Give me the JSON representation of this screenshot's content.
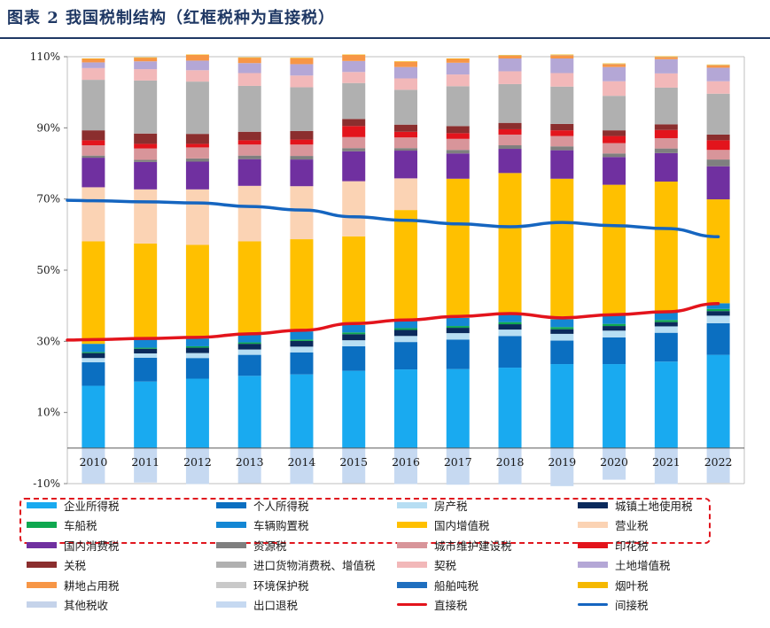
{
  "header": {
    "title": "图表  2    我国税制结构（红框税种为直接税）"
  },
  "chart_data": {
    "type": "stacked-bar-with-lines",
    "title": "我国税制结构（红框税种为直接税）",
    "categories": [
      "2010",
      "2011",
      "2012",
      "2013",
      "2014",
      "2015",
      "2016",
      "2017",
      "2018",
      "2019",
      "2020",
      "2021",
      "2022"
    ],
    "ylim": [
      -10,
      110
    ],
    "yticks": [
      "-10%",
      "10%",
      "30%",
      "50%",
      "70%",
      "90%",
      "110%"
    ],
    "ytick_values": [
      -10,
      10,
      30,
      50,
      70,
      90,
      110
    ],
    "stack_order": [
      "企业所得税",
      "个人所得税",
      "房产税",
      "城镇土地使用税",
      "车船税",
      "车辆购置税",
      "国内增值税",
      "营业税",
      "国内消费税",
      "资源税",
      "城市维护建设税",
      "印花税",
      "关税",
      "进口货物消费税、增值税",
      "契税",
      "土地增值税",
      "耕地占用税",
      "环境保护税",
      "船舶吨税",
      "烟叶税",
      "其他税收"
    ],
    "series": [
      {
        "name": "企业所得税",
        "color": "#19aaf0",
        "values": [
          17.5,
          18.7,
          19.5,
          20.3,
          20.7,
          21.7,
          22.1,
          22.2,
          22.6,
          23.6,
          23.6,
          24.3,
          26.2
        ]
      },
      {
        "name": "个人所得税",
        "color": "#0b6fc1",
        "values": [
          6.6,
          6.7,
          5.8,
          5.9,
          6.2,
          6.9,
          7.7,
          8.3,
          8.9,
          6.6,
          7.5,
          8.1,
          8.9
        ]
      },
      {
        "name": "房产税",
        "color": "#b7def3",
        "values": [
          1.2,
          1.2,
          1.4,
          1.5,
          1.6,
          1.7,
          1.7,
          1.8,
          1.8,
          1.9,
          1.9,
          1.8,
          2.1
        ]
      },
      {
        "name": "城镇土地使用税",
        "color": "#0a2a5c",
        "values": [
          1.4,
          1.3,
          1.5,
          1.6,
          1.6,
          1.7,
          1.7,
          1.5,
          1.5,
          1.3,
          1.3,
          1.2,
          1.3
        ]
      },
      {
        "name": "车船税",
        "color": "#0fa84f",
        "values": [
          0.3,
          0.3,
          0.4,
          0.4,
          0.4,
          0.5,
          0.5,
          0.5,
          0.6,
          0.6,
          0.6,
          0.6,
          0.6
        ]
      },
      {
        "name": "车辆购置税",
        "color": "#1487d4",
        "values": [
          2.3,
          2.3,
          2.2,
          2.3,
          2.3,
          2.1,
          2.0,
          2.3,
          2.3,
          2.2,
          2.3,
          2.2,
          1.6
        ]
      },
      {
        "name": "国内增值税",
        "color": "#ffc000",
        "values": [
          28.8,
          27.0,
          26.3,
          26.1,
          25.9,
          24.9,
          31.2,
          39.1,
          39.6,
          39.5,
          36.8,
          36.7,
          29.2
        ]
      },
      {
        "name": "营业税",
        "color": "#fbd3b4",
        "values": [
          15.2,
          15.2,
          15.6,
          15.6,
          14.9,
          15.5,
          8.9,
          0,
          0,
          0,
          0,
          0,
          0
        ]
      },
      {
        "name": "国内消费税",
        "color": "#7030a0",
        "values": [
          8.3,
          7.7,
          7.8,
          7.5,
          7.5,
          8.4,
          7.8,
          7.1,
          6.8,
          8.0,
          7.8,
          8.0,
          9.3
        ]
      },
      {
        "name": "资源税",
        "color": "#7f7f7f",
        "values": [
          0.6,
          0.6,
          0.9,
          1.0,
          1.0,
          0.9,
          0.7,
          1.0,
          1.0,
          1.1,
          1.0,
          1.3,
          1.9
        ]
      },
      {
        "name": "城市维护建设税",
        "color": "#d8959a",
        "values": [
          2.9,
          3.2,
          3.1,
          3.1,
          3.2,
          3.1,
          3.0,
          3.1,
          3.0,
          2.9,
          2.9,
          2.9,
          2.7
        ]
      },
      {
        "name": "印花税",
        "color": "#e3141c",
        "values": [
          1.4,
          1.3,
          1.0,
          1.2,
          1.4,
          3.1,
          1.6,
          1.6,
          1.5,
          1.6,
          2.0,
          2.3,
          2.7
        ]
      },
      {
        "name": "关税",
        "color": "#8b2e2e",
        "values": [
          2.8,
          2.9,
          2.8,
          2.4,
          2.4,
          2.0,
          2.0,
          2.0,
          1.8,
          1.8,
          1.6,
          1.6,
          1.6
        ]
      },
      {
        "name": "进口货物消费税、增值税",
        "color": "#b0b0b0",
        "values": [
          14.2,
          14.9,
          14.7,
          12.9,
          12.3,
          10.1,
          9.8,
          11.2,
          10.9,
          10.5,
          9.7,
          10.3,
          11.5
        ]
      },
      {
        "name": "契税",
        "color": "#f2b8b9",
        "values": [
          3.3,
          3.2,
          3.2,
          3.6,
          3.3,
          3.1,
          3.2,
          3.3,
          3.6,
          3.8,
          4.1,
          4.0,
          3.5
        ]
      },
      {
        "name": "土地增值税",
        "color": "#b4a7d6",
        "values": [
          1.6,
          2.2,
          2.7,
          2.8,
          3.2,
          3.1,
          3.2,
          3.3,
          3.6,
          4.1,
          4.0,
          4.0,
          3.8
        ]
      },
      {
        "name": "耕地占用税",
        "color": "#f79646",
        "values": [
          1.0,
          1.0,
          1.6,
          1.5,
          1.7,
          1.7,
          1.5,
          1.1,
          0.8,
          0.9,
          0.8,
          0.6,
          0.7
        ]
      },
      {
        "name": "环境保护税",
        "color": "#c9c9c9",
        "values": [
          0,
          0,
          0,
          0,
          0,
          0,
          0,
          0,
          0.1,
          0.1,
          0.1,
          0.1,
          0.1
        ]
      },
      {
        "name": "船舶吨税",
        "color": "#1f6fbf",
        "values": [
          0,
          0,
          0,
          0,
          0,
          0,
          0,
          0,
          0,
          0,
          0,
          0,
          0
        ]
      },
      {
        "name": "烟叶税",
        "color": "#f5b800",
        "values": [
          0.1,
          0.1,
          0.1,
          0.1,
          0.1,
          0.1,
          0.1,
          0.1,
          0.1,
          0.1,
          0.1,
          0.1,
          0.1
        ]
      },
      {
        "name": "其他税收",
        "color": "#c5d3ea",
        "values": [
          0,
          0,
          0,
          0,
          0,
          0,
          0,
          0,
          0,
          0,
          0,
          0,
          0
        ]
      }
    ],
    "negative_series": [
      {
        "name": "出口退税",
        "color": "#c6d9f1",
        "values": [
          -10.0,
          -9.7,
          -10.1,
          -9.9,
          -10.1,
          -9.9,
          -10.1,
          -10.3,
          -10.2,
          -10.7,
          -8.9,
          -10.1,
          -9.8
        ]
      }
    ],
    "lines": [
      {
        "name": "直接税",
        "color": "#e3141c",
        "values": [
          30.5,
          30.8,
          31.1,
          32.1,
          33.1,
          35.0,
          36.0,
          37.0,
          37.8,
          36.6,
          37.5,
          38.3,
          40.6
        ]
      },
      {
        "name": "间接税",
        "color": "#1565c0",
        "values": [
          69.5,
          69.2,
          68.9,
          67.9,
          66.9,
          65.0,
          64.0,
          63.0,
          62.2,
          63.4,
          62.5,
          61.7,
          59.4
        ]
      }
    ]
  },
  "legend": {
    "items": [
      {
        "label": "企业所得税",
        "color": "#19aaf0",
        "kind": "bar"
      },
      {
        "label": "个人所得税",
        "color": "#0b6fc1",
        "kind": "bar"
      },
      {
        "label": "房产税",
        "color": "#b7def3",
        "kind": "bar"
      },
      {
        "label": "城镇土地使用税",
        "color": "#0a2a5c",
        "kind": "bar"
      },
      {
        "label": "车船税",
        "color": "#0fa84f",
        "kind": "bar"
      },
      {
        "label": "车辆购置税",
        "color": "#1487d4",
        "kind": "bar"
      },
      {
        "label": "国内增值税",
        "color": "#ffc000",
        "kind": "bar"
      },
      {
        "label": "营业税",
        "color": "#fbd3b4",
        "kind": "bar"
      },
      {
        "label": "国内消费税",
        "color": "#7030a0",
        "kind": "bar"
      },
      {
        "label": "资源税",
        "color": "#7f7f7f",
        "kind": "bar"
      },
      {
        "label": "城市维护建设税",
        "color": "#d8959a",
        "kind": "bar"
      },
      {
        "label": "印花税",
        "color": "#e3141c",
        "kind": "bar"
      },
      {
        "label": "关税",
        "color": "#8b2e2e",
        "kind": "bar"
      },
      {
        "label": "进口货物消费税、增值税",
        "color": "#b0b0b0",
        "kind": "bar"
      },
      {
        "label": "契税",
        "color": "#f2b8b9",
        "kind": "bar"
      },
      {
        "label": "土地增值税",
        "color": "#b4a7d6",
        "kind": "bar"
      },
      {
        "label": "耕地占用税",
        "color": "#f79646",
        "kind": "bar"
      },
      {
        "label": "环境保护税",
        "color": "#c9c9c9",
        "kind": "bar"
      },
      {
        "label": "船舶吨税",
        "color": "#1f6fbf",
        "kind": "bar"
      },
      {
        "label": "烟叶税",
        "color": "#f5b800",
        "kind": "bar"
      },
      {
        "label": "其他税收",
        "color": "#c5d3ea",
        "kind": "bar"
      },
      {
        "label": "出口退税",
        "color": "#c6d9f1",
        "kind": "bar"
      },
      {
        "label": "直接税",
        "color": "#e3141c",
        "kind": "line"
      },
      {
        "label": "间接税",
        "color": "#1565c0",
        "kind": "line"
      }
    ],
    "highlight_note_color": "#e0161e"
  }
}
